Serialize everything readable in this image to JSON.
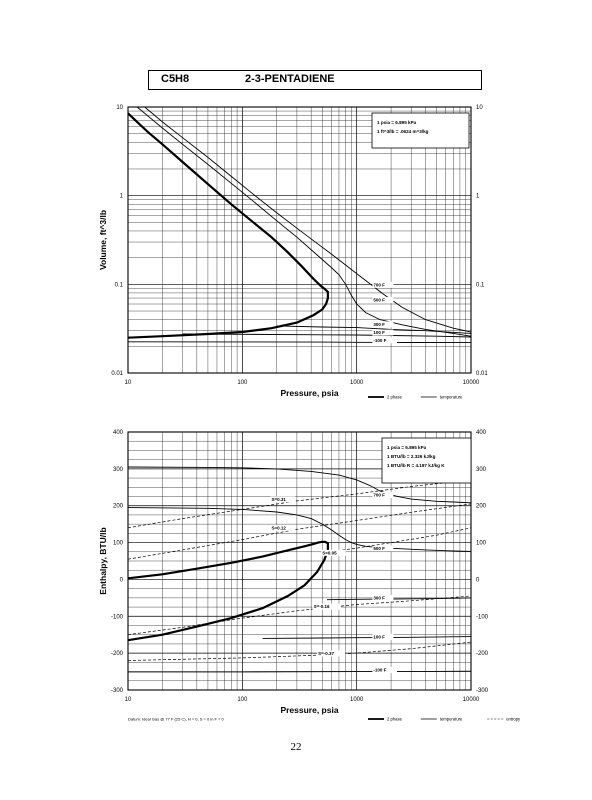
{
  "header": {
    "formula": "C5H8",
    "compound": "2-3-PENTADIENE"
  },
  "page_number": "22",
  "chart_data": [
    {
      "type": "line",
      "xlabel": "Pressure, psia",
      "ylabel": "Volume, ft^3/lb",
      "x_scale": "log",
      "y_scale": "log",
      "xlim": [
        10,
        10000
      ],
      "ylim": [
        0.01,
        10
      ],
      "x_tick_labels": [
        "10",
        "100",
        "1000",
        "10000"
      ],
      "y_tick_labels": [
        "10",
        "1",
        "0.1",
        "0.01"
      ],
      "y_ticks": [
        10,
        1,
        0.1,
        0.01
      ],
      "grid": true,
      "conversion_notes": [
        "1 psia = 6.895 kPa",
        "1 ft^3/lb = .0624 m^3/kg"
      ],
      "legend": [
        "2 phase",
        "temperature"
      ],
      "series": [
        {
          "name": "2 phase",
          "role": "phase",
          "x": [
            10,
            12,
            15,
            20,
            30,
            50,
            80,
            120,
            180,
            250,
            330,
            420,
            490,
            530,
            560,
            560,
            540,
            500,
            420,
            300,
            180,
            100,
            50,
            20,
            10
          ],
          "y": [
            8.5,
            6.8,
            5.2,
            3.8,
            2.4,
            1.35,
            0.8,
            0.52,
            0.34,
            0.23,
            0.16,
            0.115,
            0.095,
            0.088,
            0.082,
            0.07,
            0.06,
            0.052,
            0.045,
            0.037,
            0.032,
            0.029,
            0.0275,
            0.026,
            0.025
          ]
        },
        {
          "name": "700 F",
          "role": "isotherm",
          "label_x": 1400,
          "label_y": 0.095,
          "x": [
            14,
            20,
            30,
            50,
            80,
            120,
            200,
            300,
            450,
            600,
            800,
            1000,
            1300,
            1700,
            2500,
            4000,
            7000,
            10000
          ],
          "y": [
            10,
            6.8,
            4.5,
            2.7,
            1.65,
            1.08,
            0.64,
            0.43,
            0.29,
            0.22,
            0.165,
            0.132,
            0.102,
            0.078,
            0.055,
            0.04,
            0.032,
            0.029
          ]
        },
        {
          "name": "500 F",
          "role": "isotherm",
          "label_x": 1400,
          "label_y": 0.064,
          "x": [
            12,
            20,
            30,
            50,
            80,
            120,
            200,
            300,
            450,
            600,
            700,
            800,
            900,
            1000,
            1200,
            1600,
            2500,
            4000,
            7000,
            10000
          ],
          "y": [
            10,
            5.8,
            3.8,
            2.25,
            1.38,
            0.9,
            0.52,
            0.34,
            0.215,
            0.155,
            0.128,
            0.1,
            0.075,
            0.06,
            0.048,
            0.04,
            0.035,
            0.031,
            0.028,
            0.026
          ]
        },
        {
          "name": "300 F",
          "role": "isotherm",
          "label_x": 1400,
          "label_y": 0.034,
          "x": [
            200,
            500,
            1000,
            2000,
            4000,
            10000
          ],
          "y": [
            0.034,
            0.033,
            0.0325,
            0.031,
            0.03,
            0.028
          ]
        },
        {
          "name": "100 F",
          "role": "isotherm",
          "label_x": 1400,
          "label_y": 0.0275,
          "x": [
            30,
            100,
            500,
            1000,
            2000,
            5000,
            10000
          ],
          "y": [
            0.0275,
            0.0273,
            0.027,
            0.0268,
            0.0265,
            0.026,
            0.0255
          ]
        },
        {
          "name": "-100 F",
          "role": "isotherm",
          "label_x": 1400,
          "label_y": 0.0225,
          "x": [
            10,
            100,
            500,
            1000,
            3000,
            10000
          ],
          "y": [
            0.0225,
            0.0224,
            0.0223,
            0.0222,
            0.0221,
            0.022
          ]
        }
      ]
    },
    {
      "type": "line",
      "xlabel": "Pressure, psia",
      "ylabel": "Enthalpy, BTU/lb",
      "x_scale": "log",
      "y_scale": "linear",
      "xlim": [
        10,
        10000
      ],
      "ylim": [
        -300,
        400
      ],
      "x_tick_labels": [
        "10",
        "100",
        "1000",
        "10000"
      ],
      "y_ticks": [
        400,
        300,
        200,
        100,
        0,
        -100,
        -200,
        -300
      ],
      "grid": true,
      "conversion_notes": [
        "1 psia = 6.895 kPa",
        "1 BTU/lb = 2.326 kJ/kg",
        "1 BTU/lb R = 4.187 kJ/kg K"
      ],
      "legend": [
        "2 phase",
        "temperature",
        "entropy"
      ],
      "datum_note": "Datum: Ideal Gas @ 77 F (25 C), H = 0, S = 0 in F = 0",
      "series": [
        {
          "name": "2 phase",
          "role": "phase",
          "x": [
            10,
            20,
            40,
            80,
            150,
            250,
            350,
            420,
            460,
            500,
            530,
            560,
            560,
            520,
            450,
            350,
            250,
            150,
            80,
            40,
            20,
            10
          ],
          "y": [
            3,
            14,
            29,
            45,
            62,
            79,
            90,
            96,
            100,
            102,
            102,
            98,
            80,
            52,
            20,
            -16,
            -45,
            -78,
            -105,
            -128,
            -150,
            -165
          ]
        },
        {
          "name": "700 F",
          "role": "isotherm",
          "label_x": 1400,
          "label_y": 225,
          "x": [
            10,
            50,
            100,
            200,
            400,
            700,
            1000,
            1300,
            1600,
            2200,
            3000,
            5000,
            7000,
            10000
          ],
          "y": [
            305,
            304,
            303,
            300,
            293,
            283,
            270,
            255,
            240,
            226,
            218,
            212,
            210,
            208
          ]
        },
        {
          "name": "500 F",
          "role": "isotherm",
          "label_x": 1400,
          "label_y": 80,
          "x": [
            10,
            50,
            100,
            200,
            300,
            400,
            500,
            600,
            700,
            800,
            900,
            1000,
            1200,
            1600,
            2500,
            4000,
            6000,
            10000
          ],
          "y": [
            195,
            193,
            190,
            183,
            175,
            165,
            150,
            135,
            120,
            108,
            100,
            95,
            90,
            86,
            83,
            80,
            78,
            76
          ]
        },
        {
          "name": "300 F",
          "role": "isotherm",
          "label_x": 1400,
          "label_y": -55,
          "x": [
            550,
            1000,
            2000,
            5000,
            10000
          ],
          "y": [
            -55,
            -54,
            -53,
            -52,
            -50
          ]
        },
        {
          "name": "100 F",
          "role": "isotherm",
          "label_x": 1400,
          "label_y": -160,
          "x": [
            150,
            500,
            1000,
            3000,
            10000
          ],
          "y": [
            -160,
            -159,
            -158,
            -157,
            -155
          ]
        },
        {
          "name": "-100 F",
          "role": "isotherm",
          "label_x": 1400,
          "label_y": -250,
          "x": [
            10,
            100,
            1000,
            3000,
            10000
          ],
          "y": [
            -251,
            -251,
            -250,
            -250,
            -249
          ]
        },
        {
          "name": "S=0.31",
          "role": "entropy",
          "label_x": 180,
          "label_y": 213,
          "x": [
            10,
            30,
            100,
            300,
            1000,
            3000,
            10000
          ],
          "y": [
            140,
            165,
            190,
            213,
            232,
            252,
            270
          ]
        },
        {
          "name": "S=0.12",
          "role": "entropy",
          "label_x": 180,
          "label_y": 136,
          "x": [
            10,
            30,
            100,
            300,
            1000,
            3000,
            10000
          ],
          "y": [
            55,
            80,
            108,
            136,
            160,
            182,
            205
          ]
        },
        {
          "name": "S=0.05",
          "role": "entropy",
          "label_x": 500,
          "label_y": 68,
          "x": [
            500,
            1000,
            2000,
            5000,
            10000
          ],
          "y": [
            72,
            85,
            100,
            120,
            140
          ]
        },
        {
          "name": "S=-0.16",
          "role": "entropy",
          "label_x": 420,
          "label_y": -78,
          "x": [
            10,
            30,
            100,
            300,
            600,
            1000,
            3000,
            10000
          ],
          "y": [
            -150,
            -130,
            -105,
            -85,
            -75,
            -68,
            -58,
            -45
          ]
        },
        {
          "name": "S=-0.37",
          "role": "entropy",
          "label_x": 460,
          "label_y": -205,
          "x": [
            10,
            100,
            500,
            1000,
            3000,
            10000
          ],
          "y": [
            -220,
            -213,
            -205,
            -200,
            -188,
            -170
          ]
        }
      ]
    }
  ]
}
